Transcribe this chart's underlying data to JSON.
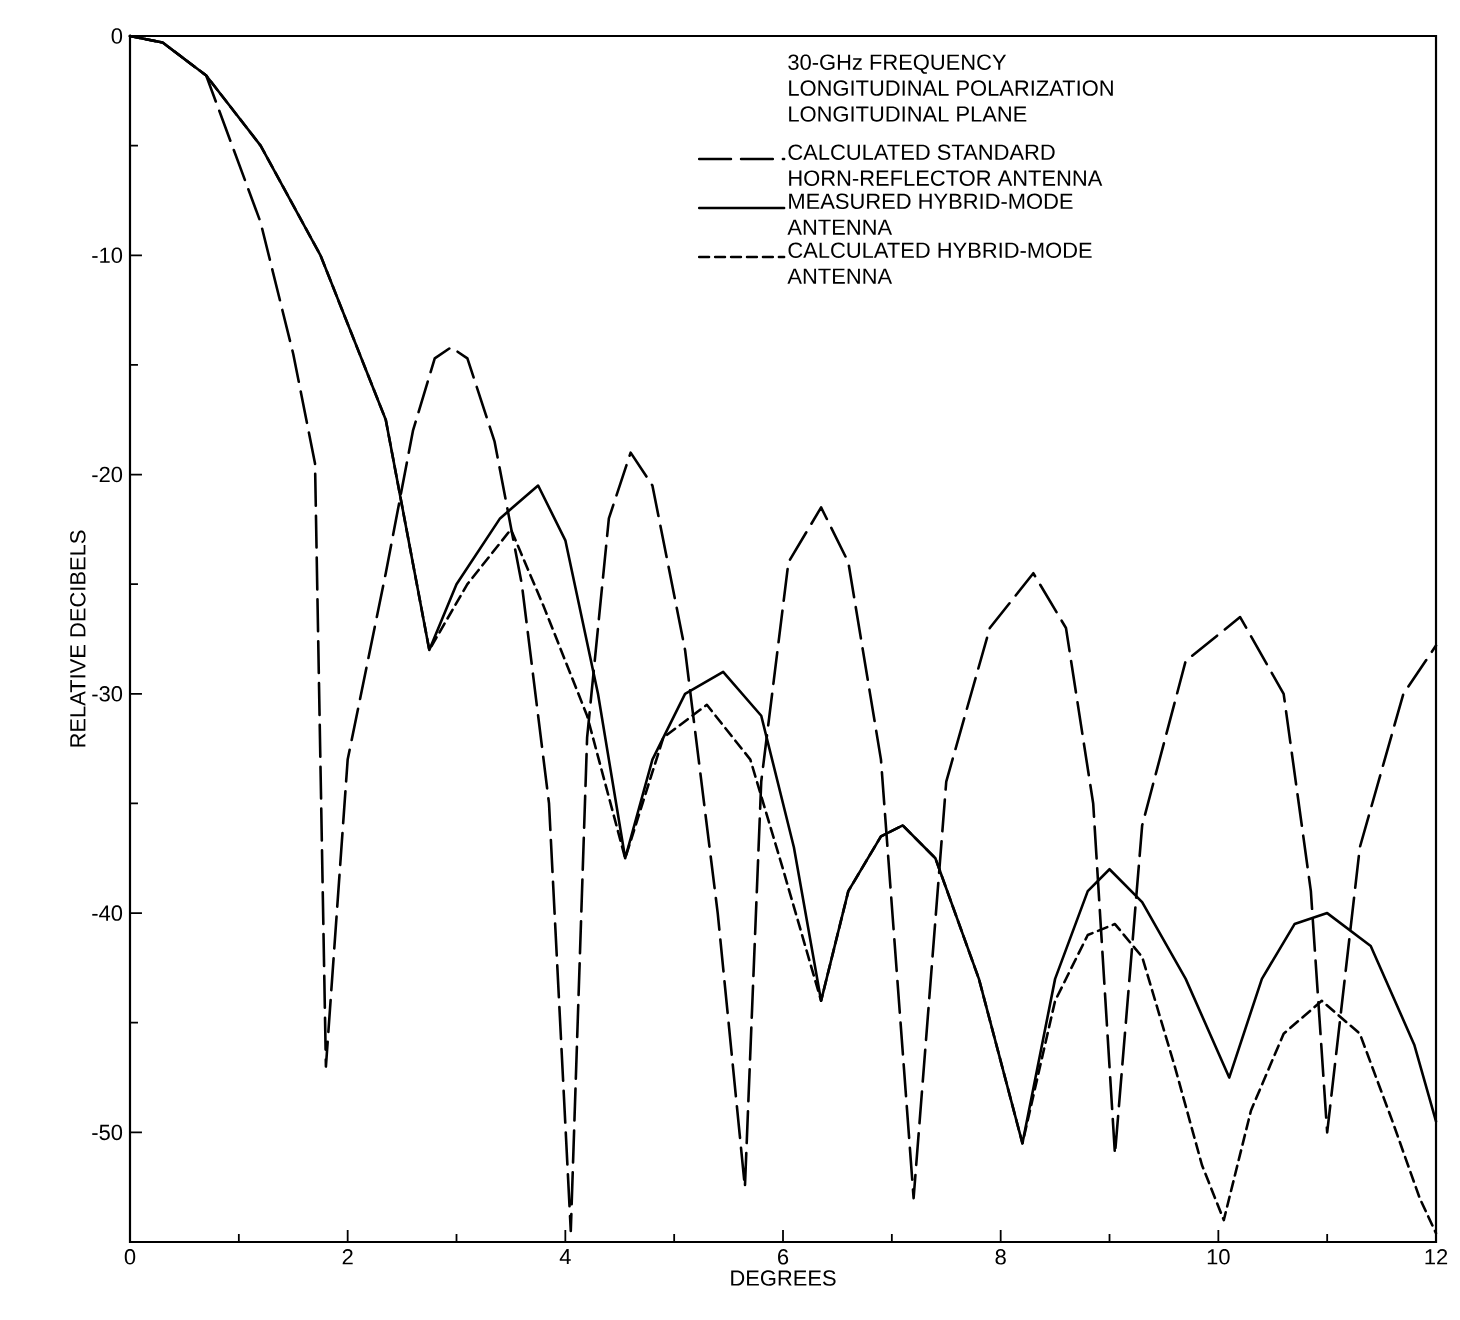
{
  "chart_data": {
    "type": "line",
    "xlabel": "DEGREES",
    "ylabel": "RELATIVE DECIBELS",
    "legend_title": "30-GHz FREQUENCY LONGITUDINAL POLARIZATION LONGITUDINAL PLANE",
    "xlim": [
      0,
      12
    ],
    "ylim": [
      -55,
      0
    ],
    "xticks": [
      0,
      2,
      4,
      6,
      8,
      10,
      12
    ],
    "yticks": [
      -50,
      -40,
      -30,
      -20,
      -10,
      0
    ],
    "grid": false,
    "legend": "top right",
    "marker": "none",
    "series": [
      {
        "name": "CALCULATED STANDARD HORN-REFLECTOR ANTENNA",
        "color": "#000000",
        "line_style": "long dashed",
        "x": [
          0,
          0.3,
          0.7,
          1.2,
          1.5,
          1.7,
          1.8,
          2.0,
          2.35,
          2.6,
          2.8,
          2.95,
          3.1,
          3.35,
          3.6,
          3.85,
          4.05,
          4.2,
          4.4,
          4.6,
          4.8,
          5.1,
          5.4,
          5.65,
          5.8,
          6.05,
          6.35,
          6.6,
          6.9,
          7.2,
          7.5,
          7.9,
          8.3,
          8.6,
          8.85,
          9.05,
          9.3,
          9.7,
          10.2,
          10.6,
          10.85,
          11.0,
          11.3,
          11.7,
          12
        ],
        "values": [
          0,
          -0.3,
          -1.8,
          -8.5,
          -14.5,
          -19.5,
          -47,
          -33,
          -24.5,
          -18,
          -14.7,
          -14.2,
          -14.7,
          -18.5,
          -25,
          -35,
          -54.5,
          -32,
          -22,
          -19,
          -20.5,
          -28,
          -40,
          -52.5,
          -34,
          -24,
          -21.5,
          -24,
          -33,
          -53,
          -34,
          -27,
          -24.5,
          -27,
          -35,
          -51,
          -36,
          -28.5,
          -26.5,
          -30,
          -39,
          -50,
          -37,
          -30,
          -27.8
        ]
      },
      {
        "name": "MEASURED HYBRID-MODE ANTENNA",
        "color": "#000000",
        "line_style": "solid",
        "x": [
          0,
          0.3,
          0.7,
          1.2,
          1.75,
          2.35,
          2.75,
          3.0,
          3.4,
          3.75,
          4.0,
          4.3,
          4.55,
          4.8,
          5.1,
          5.45,
          5.8,
          6.1,
          6.35,
          6.6,
          6.9,
          7.1,
          7.4,
          7.8,
          8.2,
          8.5,
          8.8,
          9.0,
          9.3,
          9.7,
          10.1,
          10.4,
          10.7,
          11.0,
          11.4,
          11.8,
          12
        ],
        "values": [
          0,
          -0.3,
          -1.8,
          -5,
          -10,
          -17.5,
          -28,
          -25,
          -22,
          -20.5,
          -23,
          -30,
          -37.5,
          -33,
          -30,
          -29,
          -31,
          -37,
          -44,
          -39,
          -36.5,
          -36,
          -37.5,
          -43,
          -50.5,
          -43,
          -39,
          -38,
          -39.5,
          -43,
          -47.5,
          -43,
          -40.5,
          -40,
          -41.5,
          -46,
          -49.5
        ]
      },
      {
        "name": "CALCULATED HYBRID-MODE ANTENNA",
        "color": "#000000",
        "line_style": "dashed",
        "x": [
          0,
          0.3,
          0.7,
          1.2,
          1.75,
          2.35,
          2.75,
          3.1,
          3.5,
          3.8,
          4.2,
          4.55,
          4.9,
          5.3,
          5.7,
          6.0,
          6.35,
          6.6,
          6.9,
          7.1,
          7.4,
          7.8,
          8.2,
          8.5,
          8.8,
          9.05,
          9.3,
          9.6,
          9.85,
          10.05,
          10.3,
          10.6,
          10.95,
          11.3,
          11.6,
          11.85,
          12
        ],
        "values": [
          0,
          -0.3,
          -1.8,
          -5,
          -10,
          -17.5,
          -28,
          -25,
          -22.5,
          -26,
          -31,
          -37.5,
          -32,
          -30.5,
          -33,
          -38,
          -44,
          -39,
          -36.5,
          -36,
          -37.5,
          -43,
          -50.5,
          -44,
          -41,
          -40.5,
          -42,
          -47,
          -51.5,
          -54,
          -49,
          -45.5,
          -44,
          -45.5,
          -49.5,
          -53,
          -54.6
        ]
      }
    ]
  }
}
